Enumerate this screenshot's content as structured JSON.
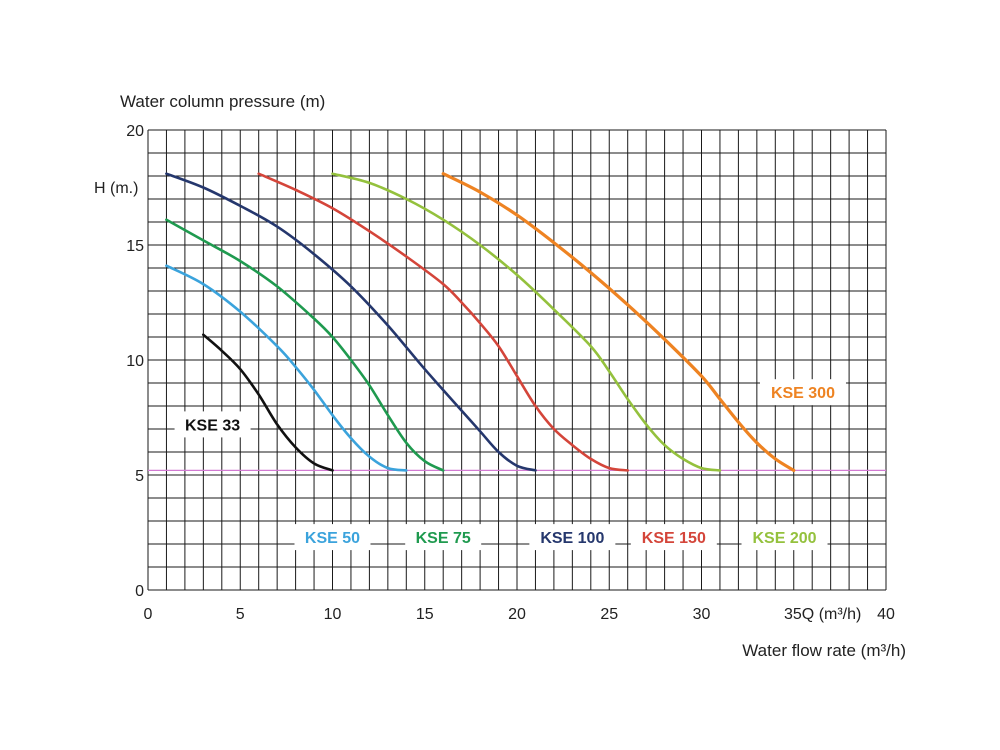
{
  "chart_data": {
    "type": "line",
    "ylabel": "Water column pressure (m)",
    "xlabel": "Water flow rate (m³/h)",
    "y_marker_label": "H (m.)",
    "x_end_label": "35Q (m³/h)",
    "xlim": [
      0,
      40
    ],
    "ylim": [
      0,
      20
    ],
    "grid": true,
    "x_ticks": [
      {
        "value": 0,
        "label": "0"
      },
      {
        "value": 5,
        "label": "5"
      },
      {
        "value": 10,
        "label": "10"
      },
      {
        "value": 15,
        "label": "15"
      },
      {
        "value": 20,
        "label": "20"
      },
      {
        "value": 25,
        "label": "25"
      },
      {
        "value": 30,
        "label": "30"
      },
      {
        "value": 40,
        "label": "40"
      }
    ],
    "y_ticks": [
      {
        "value": 0,
        "label": "0"
      },
      {
        "value": 5,
        "label": "5"
      },
      {
        "value": 10,
        "label": "10"
      },
      {
        "value": 15,
        "label": "15"
      },
      {
        "value": 20,
        "label": "20"
      }
    ],
    "min_pressure_line": {
      "y": 5.2,
      "color": "#d27ad2"
    },
    "series": [
      {
        "name": "KSE 33",
        "color": "#111111",
        "x": [
          3,
          4,
          5,
          6,
          7,
          8,
          9,
          10
        ],
        "y": [
          11.1,
          10.4,
          9.6,
          8.5,
          7.2,
          6.2,
          5.5,
          5.2
        ]
      },
      {
        "name": "KSE 50",
        "color": "#3ba3dc",
        "x": [
          1,
          3,
          5,
          7,
          8,
          9,
          10,
          11,
          12,
          13,
          14
        ],
        "y": [
          14.1,
          13.3,
          12.1,
          10.6,
          9.7,
          8.7,
          7.6,
          6.6,
          5.8,
          5.3,
          5.2
        ]
      },
      {
        "name": "KSE 75",
        "color": "#1f9a4f",
        "x": [
          1,
          3,
          5,
          7,
          9,
          10,
          11,
          12,
          13,
          14,
          15,
          16
        ],
        "y": [
          16.1,
          15.2,
          14.3,
          13.2,
          11.8,
          11.0,
          10.0,
          8.9,
          7.6,
          6.4,
          5.6,
          5.2
        ]
      },
      {
        "name": "KSE 100",
        "color": "#25376d",
        "x": [
          1,
          3,
          5,
          7,
          9,
          11,
          13,
          15,
          17,
          18,
          19,
          20,
          21
        ],
        "y": [
          18.1,
          17.5,
          16.7,
          15.8,
          14.6,
          13.2,
          11.5,
          9.6,
          7.8,
          6.9,
          6.0,
          5.4,
          5.2
        ]
      },
      {
        "name": "KSE 150",
        "color": "#d4453a",
        "x": [
          6,
          8,
          10,
          12,
          14,
          16,
          17,
          18,
          19,
          20,
          21,
          22,
          23,
          24,
          25,
          26
        ],
        "y": [
          18.1,
          17.4,
          16.6,
          15.6,
          14.5,
          13.3,
          12.5,
          11.6,
          10.6,
          9.3,
          8.0,
          7.0,
          6.3,
          5.7,
          5.3,
          5.2
        ]
      },
      {
        "name": "KSE 200",
        "color": "#94c13d",
        "x": [
          10,
          12,
          14,
          16,
          18,
          20,
          22,
          24,
          25,
          26,
          27,
          28,
          29,
          30,
          31
        ],
        "y": [
          18.1,
          17.7,
          17.0,
          16.1,
          15.0,
          13.7,
          12.2,
          10.6,
          9.5,
          8.3,
          7.2,
          6.3,
          5.7,
          5.3,
          5.2
        ]
      },
      {
        "name": "KSE 300",
        "color": "#ee8322",
        "x": [
          16,
          18,
          20,
          22,
          24,
          26,
          28,
          30,
          31,
          32,
          33,
          34,
          35
        ],
        "y": [
          18.1,
          17.3,
          16.3,
          15.1,
          13.8,
          12.4,
          10.9,
          9.3,
          8.3,
          7.3,
          6.4,
          5.7,
          5.2
        ]
      }
    ],
    "series_label_anchors": [
      {
        "name": "KSE 33",
        "x": 3.5,
        "y": 7.2
      },
      {
        "name": "KSE 50",
        "x": 10,
        "y": 2.3
      },
      {
        "name": "KSE 75",
        "x": 16,
        "y": 2.3
      },
      {
        "name": "KSE 100",
        "x": 23,
        "y": 2.3
      },
      {
        "name": "KSE 150",
        "x": 28.5,
        "y": 2.3
      },
      {
        "name": "KSE 200",
        "x": 34.5,
        "y": 2.3
      },
      {
        "name": "KSE 300",
        "x": 35.5,
        "y": 8.6
      }
    ]
  }
}
